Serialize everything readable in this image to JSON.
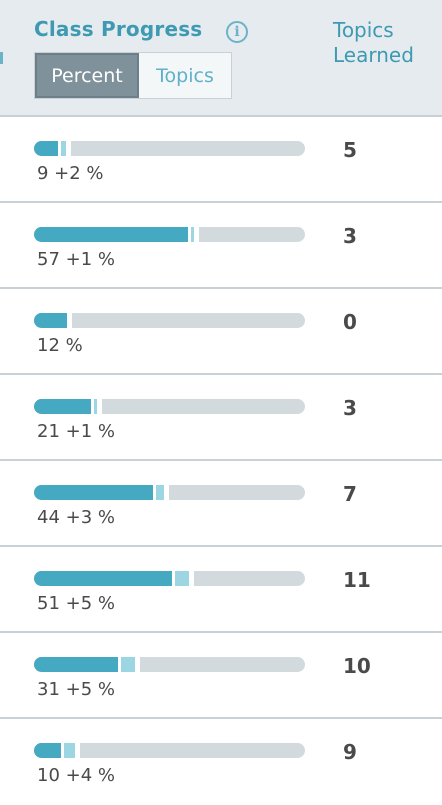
{
  "header": {
    "title": "Class Progress",
    "info_icon": "info-icon",
    "toggle": {
      "options": [
        "Percent",
        "Topics"
      ],
      "selected": "Percent"
    },
    "column_topics": [
      "Topics",
      "Learned"
    ]
  },
  "rows": [
    {
      "percent_label": "9 +2 %",
      "base": 9,
      "gain": 2,
      "topics": "5"
    },
    {
      "percent_label": "57 +1 %",
      "base": 57,
      "gain": 1,
      "topics": "3"
    },
    {
      "percent_label": "12 %",
      "base": 12,
      "gain": 0,
      "topics": "0"
    },
    {
      "percent_label": "21 +1 %",
      "base": 21,
      "gain": 1,
      "topics": "3"
    },
    {
      "percent_label": "44 +3 %",
      "base": 44,
      "gain": 3,
      "topics": "7"
    },
    {
      "percent_label": "51 +5 %",
      "base": 51,
      "gain": 5,
      "topics": "11"
    },
    {
      "percent_label": "31 +5 %",
      "base": 31,
      "gain": 5,
      "topics": "10"
    },
    {
      "percent_label": "10 +4 %",
      "base": 10,
      "gain": 4,
      "topics": "9"
    }
  ],
  "colors": {
    "accent": "#3e9ab3",
    "bar_fill": "#46a9c2",
    "bar_gain": "#9dd6e3",
    "bar_track": "#d3dadd"
  }
}
